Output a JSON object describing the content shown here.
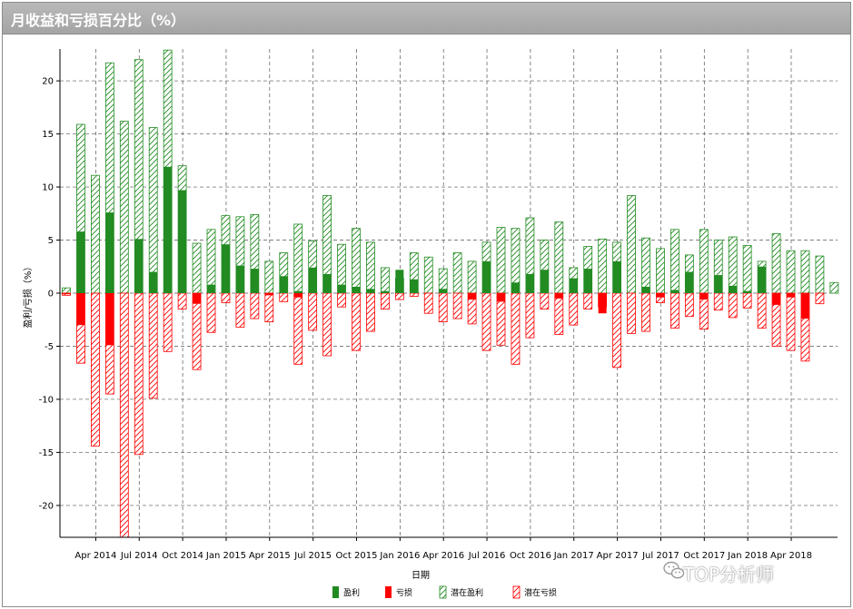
{
  "title": "月收益和亏损百分比（%）",
  "watermark": "TOP分析师",
  "colors": {
    "profit": "#228B22",
    "loss": "#FF0000",
    "latent_profit": "#228B22",
    "latent_loss": "#FF0000"
  },
  "chart_data": {
    "type": "bar",
    "xlabel": "日期",
    "ylabel": "盈利/亏损（%）",
    "ylim": [
      -23,
      23
    ],
    "yticks": [
      -20,
      -15,
      -10,
      -5,
      0,
      5,
      10,
      15,
      20
    ],
    "grid": true,
    "legend_position": "bottom",
    "x_tick_labels": [
      {
        "label": "Apr 2014",
        "index": 2
      },
      {
        "label": "Jul 2014",
        "index": 5
      },
      {
        "label": "Oct 2014",
        "index": 8
      },
      {
        "label": "Jan 2015",
        "index": 11
      },
      {
        "label": "Apr 2015",
        "index": 14
      },
      {
        "label": "Jul 2015",
        "index": 17
      },
      {
        "label": "Oct 2015",
        "index": 20
      },
      {
        "label": "Jan 2016",
        "index": 23
      },
      {
        "label": "Apr 2016",
        "index": 26
      },
      {
        "label": "Jul 2016",
        "index": 29
      },
      {
        "label": "Oct 2016",
        "index": 32
      },
      {
        "label": "Jan 2017",
        "index": 35
      },
      {
        "label": "Apr 2017",
        "index": 38
      },
      {
        "label": "Jul 2017",
        "index": 41
      },
      {
        "label": "Oct 2017",
        "index": 44
      },
      {
        "label": "Jan 2018",
        "index": 47
      },
      {
        "label": "Apr 2018",
        "index": 50
      }
    ],
    "categories": [
      "2014-01",
      "2014-02",
      "2014-03",
      "2014-04",
      "2014-05",
      "2014-06",
      "2014-07",
      "2014-08",
      "2014-09",
      "2014-10",
      "2014-11",
      "2014-12",
      "2015-01",
      "2015-02",
      "2015-03",
      "2015-04",
      "2015-05",
      "2015-06",
      "2015-07",
      "2015-08",
      "2015-09",
      "2015-10",
      "2015-11",
      "2015-12",
      "2016-01",
      "2016-02",
      "2016-03",
      "2016-04",
      "2016-05",
      "2016-06",
      "2016-07",
      "2016-08",
      "2016-09",
      "2016-10",
      "2016-11",
      "2016-12",
      "2017-01",
      "2017-02",
      "2017-03",
      "2017-04",
      "2017-05",
      "2017-06",
      "2017-07",
      "2017-08",
      "2017-09",
      "2017-10",
      "2017-11",
      "2017-12",
      "2018-01",
      "2018-02",
      "2018-03",
      "2018-04",
      "2018-05",
      "2018-06"
    ],
    "series": [
      {
        "name": "盈利",
        "style": "solid",
        "color": "#228B22",
        "values": [
          0,
          5.8,
          0,
          7.6,
          0,
          5.1,
          2.0,
          11.9,
          9.7,
          0,
          0.8,
          4.6,
          2.6,
          2.3,
          0,
          1.6,
          0.2,
          2.4,
          1.8,
          0.8,
          0.6,
          0.4,
          0.2,
          2.2,
          1.3,
          0,
          0.4,
          0,
          0,
          3.0,
          0,
          1.0,
          1.8,
          2.2,
          0,
          1.4,
          2.3,
          0,
          3.0,
          0,
          0.6,
          0,
          0.3,
          2.0,
          0,
          1.7,
          0.7,
          0.2,
          2.5,
          0,
          0,
          0,
          0,
          0
        ]
      },
      {
        "name": "亏损",
        "style": "solid",
        "color": "#FF0000",
        "values": [
          -0.1,
          -3.0,
          0,
          -4.9,
          0,
          0,
          0,
          0,
          0,
          -1.0,
          0,
          0,
          0,
          0,
          -0.2,
          0,
          -0.4,
          0,
          0,
          0,
          0,
          0,
          0,
          0,
          0,
          0,
          0,
          0,
          -0.6,
          0,
          -0.8,
          0,
          0,
          0,
          -0.5,
          0,
          0,
          -1.9,
          0,
          0,
          0,
          -0.4,
          0,
          0,
          -0.6,
          0,
          0,
          0,
          0,
          -1.1,
          -0.4,
          -2.4,
          0,
          0
        ]
      },
      {
        "name": "潜在盈利",
        "style": "hatched",
        "color": "#228B22",
        "values": [
          0.5,
          15.9,
          11.1,
          21.7,
          16.2,
          22.0,
          15.6,
          22.9,
          12.0,
          4.7,
          6.0,
          7.3,
          7.2,
          7.4,
          3.0,
          3.8,
          6.5,
          4.9,
          9.2,
          4.6,
          6.1,
          4.8,
          2.4,
          1.4,
          3.8,
          3.4,
          2.3,
          3.8,
          3.0,
          4.8,
          6.2,
          6.1,
          7.1,
          5.0,
          6.7,
          2.4,
          4.4,
          5.1,
          4.8,
          9.2,
          5.2,
          4.2,
          6.0,
          3.6,
          6.0,
          5.0,
          5.3,
          4.5,
          3.0,
          5.6,
          4.0,
          4.0,
          3.5,
          1.0
        ]
      },
      {
        "name": "潜在亏损",
        "style": "hatched",
        "color": "#FF0000",
        "values": [
          -0.2,
          -6.6,
          -14.4,
          -9.5,
          -23.0,
          -15.2,
          -9.9,
          -5.5,
          -1.5,
          -7.2,
          -3.7,
          -0.9,
          -3.2,
          -2.4,
          -2.7,
          -0.8,
          -6.7,
          -3.5,
          -5.9,
          -1.3,
          -5.4,
          -3.6,
          -1.5,
          -0.6,
          -0.3,
          -1.9,
          -2.7,
          -2.4,
          -2.9,
          -5.4,
          -4.9,
          -6.7,
          -4.2,
          -1.5,
          -3.9,
          -3.0,
          -1.5,
          -1.3,
          -7.0,
          -3.8,
          -3.6,
          -0.9,
          -3.3,
          -2.2,
          -3.4,
          -1.6,
          -2.3,
          -1.4,
          -3.3,
          -5.0,
          -5.4,
          -6.4,
          -1.0,
          0
        ]
      }
    ]
  }
}
